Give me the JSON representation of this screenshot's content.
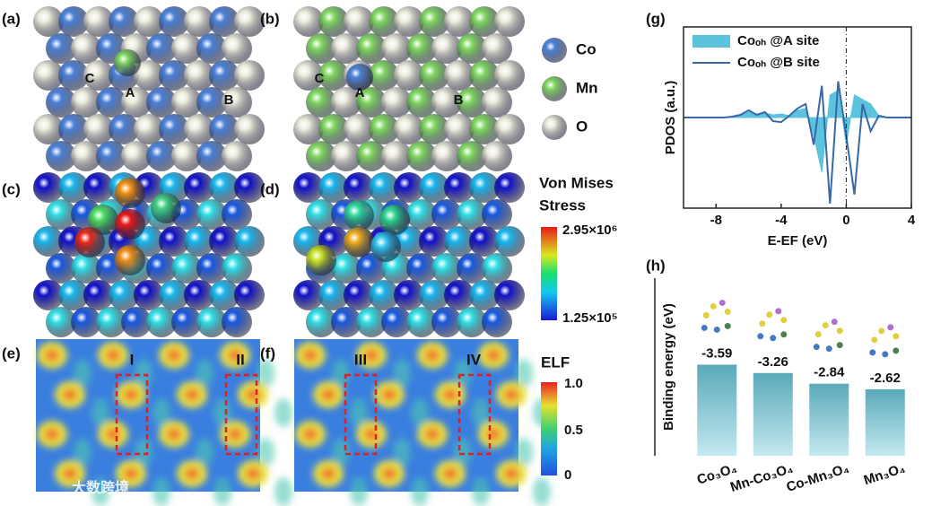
{
  "panels": {
    "a": {
      "label": "(a)",
      "sites": [
        "C",
        "A",
        "B"
      ]
    },
    "b": {
      "label": "(b)",
      "sites": [
        "C",
        "A",
        "B"
      ]
    },
    "c": {
      "label": "(c)"
    },
    "d": {
      "label": "(d)"
    },
    "e": {
      "label": "(e)",
      "regions": [
        "I",
        "II"
      ]
    },
    "f": {
      "label": "(f)",
      "regions": [
        "III",
        "IV"
      ]
    }
  },
  "element_legend": [
    "Co",
    "Mn",
    "O"
  ],
  "stress_scale": {
    "title_lines": [
      "Von Mises",
      "Stress"
    ],
    "max_label": "2.95×10⁶",
    "min_label": "1.25×10⁵"
  },
  "elf_scale": {
    "title": "ELF",
    "labels": [
      "1.0",
      "0.5",
      "0"
    ]
  },
  "watermark": "大数跨境",
  "chart_data": [
    {
      "type": "line",
      "panel_label": "(g)",
      "xlabel": "E-EF (eV)",
      "ylabel": "PDOS (a.u.)",
      "x": [
        -10,
        -9.5,
        -9,
        -8.5,
        -8,
        -7.5,
        -7,
        -6.5,
        -6,
        -5.5,
        -5,
        -4.5,
        -4,
        -3.5,
        -3,
        -2.5,
        -2,
        -1.5,
        -1,
        -0.5,
        0,
        0.5,
        1,
        1.5,
        2,
        2.5,
        3,
        3.5,
        4
      ],
      "series": [
        {
          "name": "Coₒₕ @A site",
          "color": "#5bc3dc",
          "fill": true,
          "values": [
            0,
            0,
            0,
            0,
            0,
            0,
            0.01,
            0.02,
            0.06,
            0.04,
            0.05,
            0.03,
            0.04,
            0.02,
            0.08,
            0.1,
            -0.2,
            -0.6,
            0.25,
            0.3,
            -0.3,
            0.25,
            0.2,
            0.15,
            0.02,
            0,
            0,
            0,
            0
          ]
        },
        {
          "name": "Coₒₕ @B site",
          "color": "#3a67a8",
          "fill": false,
          "values": [
            0,
            0,
            0,
            0,
            0,
            0,
            0.01,
            0.03,
            0.08,
            0.03,
            0.06,
            -0.04,
            -0.05,
            0.02,
            0.1,
            0.15,
            -0.3,
            0.35,
            -0.95,
            0.4,
            -0.2,
            -0.85,
            0.15,
            -0.15,
            0.02,
            0,
            0,
            0,
            0
          ]
        }
      ],
      "xlim": [
        -10,
        4
      ],
      "xticks": [
        -8,
        -4,
        0,
        4
      ],
      "ylim": [
        -1,
        1
      ],
      "vline": 0,
      "legend": "top-left"
    },
    {
      "type": "bar",
      "panel_label": "(h)",
      "ylabel": "Binding energy (eV)",
      "categories": [
        "Co₃O₄",
        "Mn-Co₃O₄",
        "Co-Mn₃O₄",
        "Mn₃O₄"
      ],
      "values": [
        -3.59,
        -3.26,
        -2.84,
        -2.62
      ],
      "ylim": [
        0,
        -7
      ],
      "color": "#5fb3c4"
    }
  ]
}
